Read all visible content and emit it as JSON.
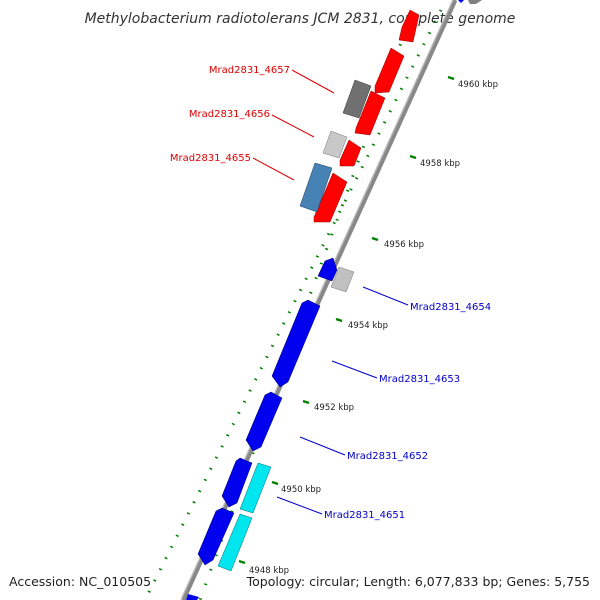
{
  "title": "Methylobacterium radiotolerans JCM 2831, complete genome",
  "footer": {
    "accession": "Accession: NC_010505",
    "summary": "Topology: circular; Length: 6,077,833 bp; Genes: 5,755"
  },
  "scale_labels": [
    "4948 kbp",
    "4950 kbp",
    "4952 kbp",
    "4954 kbp",
    "4956 kbp",
    "4958 kbp",
    "4960 kbp"
  ],
  "gene_labels": [
    {
      "name": "Mrad2831_4657",
      "color": "#dd0000"
    },
    {
      "name": "Mrad2831_4656",
      "color": "#dd0000"
    },
    {
      "name": "Mrad2831_4655",
      "color": "#dd0000"
    },
    {
      "name": "Mrad2831_4654",
      "color": "#0000cc"
    },
    {
      "name": "Mrad2831_4653",
      "color": "#0000cc"
    },
    {
      "name": "Mrad2831_4652",
      "color": "#0000cc"
    },
    {
      "name": "Mrad2831_4651",
      "color": "#0000cc"
    }
  ],
  "colors": {
    "forward_gene": "#ff0000",
    "reverse_gene": "#0000ee",
    "highlight_gene": "#00e5ee",
    "steelblue_gene": "#4682b4",
    "grey_gene": "#808080",
    "light_grey_gene": "#c8c8c8",
    "backbone": "#888888",
    "tick": "#008000"
  }
}
